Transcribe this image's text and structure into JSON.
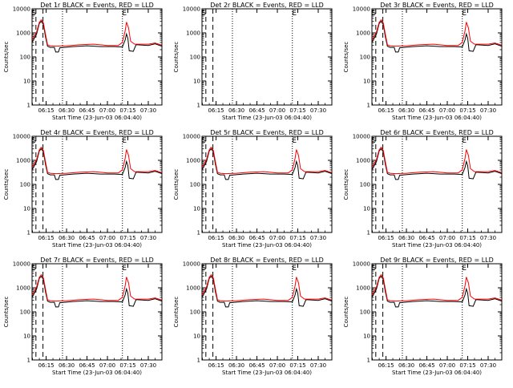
{
  "chart_data": {
    "type": "line",
    "xlabel": "Start Time (23-Jun-03 06:04:40)",
    "ylabel": "Counts/sec",
    "y_scale": "log",
    "ylim": [
      1,
      10000
    ],
    "xlim": [
      "06:04:40",
      "07:40:00"
    ],
    "x_ticks": [
      "06:15",
      "06:30",
      "06:45",
      "07:00",
      "07:15",
      "07:30"
    ],
    "y_ticks": [
      "1",
      "10",
      "100",
      "1000",
      "10000"
    ],
    "dashed_lines": [
      "06:07:30",
      "06:12:40"
    ],
    "dotted_lines": [
      "06:27:00",
      "07:11:00"
    ],
    "markers": [
      {
        "text": "S",
        "x": "06:06:00"
      },
      {
        "text": "E",
        "x": "07:12:30"
      }
    ],
    "series_colors": {
      "events": "#000000",
      "lld": "#ff0000"
    },
    "events_profile": [
      [
        "06:04:40",
        400
      ],
      [
        "06:08:00",
        900
      ],
      [
        "06:10:00",
        2500
      ],
      [
        "06:11:30",
        3000
      ],
      [
        "06:13:00",
        2200
      ],
      [
        "06:14:30",
        700
      ],
      [
        "06:16:00",
        280
      ],
      [
        "06:18:00",
        250
      ],
      [
        "06:21:00",
        250
      ],
      [
        "06:22:00",
        160
      ],
      [
        "06:24:00",
        160
      ],
      [
        "06:25:00",
        240
      ],
      [
        "06:35:00",
        270
      ],
      [
        "06:45:00",
        290
      ],
      [
        "06:55:00",
        270
      ],
      [
        "07:05:00",
        270
      ],
      [
        "07:11:00",
        260
      ],
      [
        "07:13:00",
        500
      ],
      [
        "07:14:00",
        900
      ],
      [
        "07:15:00",
        600
      ],
      [
        "07:16:00",
        180
      ],
      [
        "07:19:00",
        170
      ],
      [
        "07:21:00",
        320
      ],
      [
        "07:30:00",
        300
      ],
      [
        "07:35:00",
        350
      ],
      [
        "07:40:00",
        280
      ]
    ],
    "lld_profile": [
      [
        "06:04:40",
        500
      ],
      [
        "06:08:00",
        1100
      ],
      [
        "06:10:00",
        2800
      ],
      [
        "06:11:30",
        3500
      ],
      [
        "06:13:00",
        2600
      ],
      [
        "06:14:30",
        900
      ],
      [
        "06:16:00",
        320
      ],
      [
        "06:18:00",
        290
      ],
      [
        "06:22:00",
        280
      ],
      [
        "06:30:00",
        290
      ],
      [
        "06:40:00",
        320
      ],
      [
        "06:50:00",
        340
      ],
      [
        "07:00:00",
        300
      ],
      [
        "07:08:00",
        300
      ],
      [
        "07:11:00",
        400
      ],
      [
        "07:13:00",
        1200
      ],
      [
        "07:14:00",
        2800
      ],
      [
        "07:15:30",
        1600
      ],
      [
        "07:17:00",
        450
      ],
      [
        "07:20:00",
        340
      ],
      [
        "07:30:00",
        340
      ],
      [
        "07:35:00",
        380
      ],
      [
        "07:40:00",
        310
      ]
    ],
    "panels": [
      {
        "id": "det-1r",
        "title": "Det 1r BLACK = Events, RED = LLD",
        "events_scale": 1.0,
        "lld_scale": 1.0,
        "has_data": true
      },
      {
        "id": "det-2r",
        "title": "Det 2r BLACK = Events, RED = LLD",
        "events_scale": 1.0,
        "lld_scale": 1.0,
        "has_data": false
      },
      {
        "id": "det-3r",
        "title": "Det 3r BLACK = Events, RED = LLD",
        "events_scale": 1.0,
        "lld_scale": 1.0,
        "has_data": true
      },
      {
        "id": "det-4r",
        "title": "Det 4r BLACK = Events, RED = LLD",
        "events_scale": 1.0,
        "lld_scale": 1.0,
        "has_data": true
      },
      {
        "id": "det-5r",
        "title": "Det 5r BLACK = Events, RED = LLD",
        "events_scale": 1.0,
        "lld_scale": 1.0,
        "has_data": true
      },
      {
        "id": "det-6r",
        "title": "Det 6r BLACK = Events, RED = LLD",
        "events_scale": 1.0,
        "lld_scale": 1.0,
        "has_data": true
      },
      {
        "id": "det-7r",
        "title": "Det 7r BLACK = Events, RED = LLD",
        "events_scale": 1.0,
        "lld_scale": 1.0,
        "has_data": true
      },
      {
        "id": "det-8r",
        "title": "Det 8r BLACK = Events, RED = LLD",
        "events_scale": 1.0,
        "lld_scale": 1.0,
        "has_data": true
      },
      {
        "id": "det-9r",
        "title": "Det 9r BLACK = Events, RED = LLD",
        "events_scale": 1.0,
        "lld_scale": 1.0,
        "has_data": true
      }
    ]
  }
}
